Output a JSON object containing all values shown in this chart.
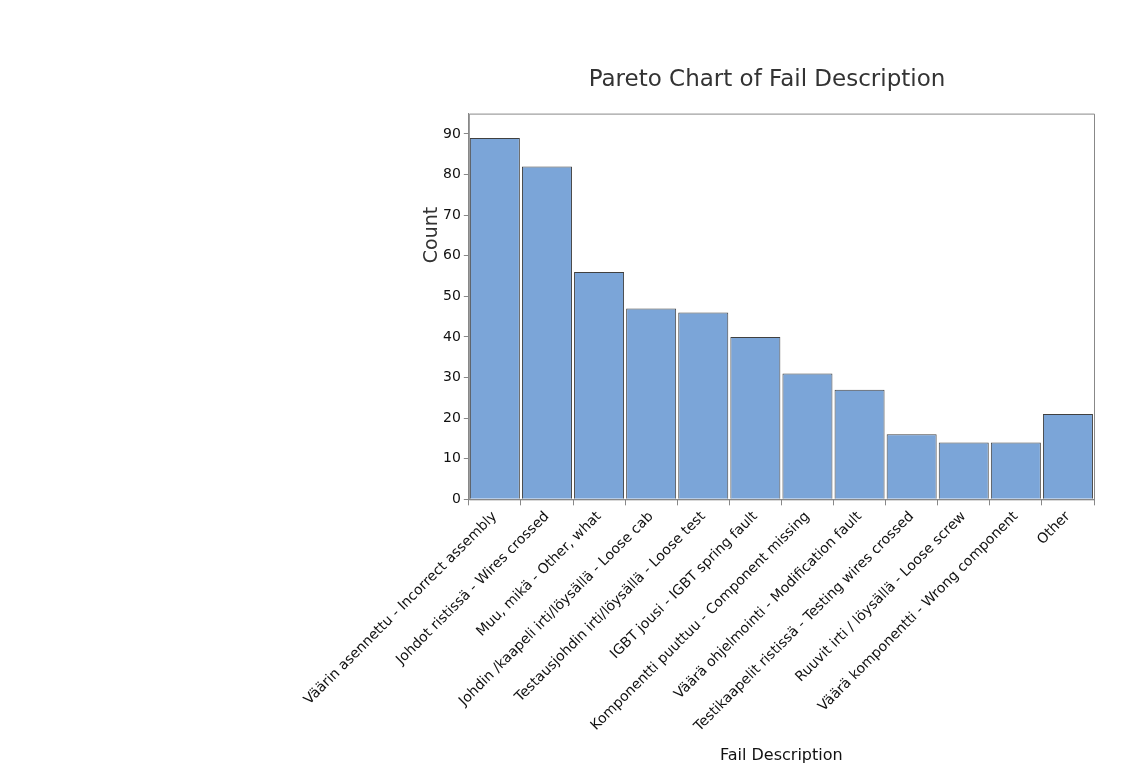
{
  "chart_data": {
    "type": "bar",
    "title": "Pareto Chart of Fail Description",
    "xlabel": "Fail Description",
    "ylabel": "Count",
    "categories": [
      "Väärin asennettu - Incorrect assembly",
      "Johdot ristissä - Wires crossed",
      "Muu, mikä - Other, what",
      "Johdin /kaapeli irti/löysällä - Loose cab",
      "Testausjohdin irti/löysällä - Loose test",
      "IGBT jousi - IGBT spring fault",
      "Komponentti puuttuu - Component missing",
      "Väärä ohjelmointi - Modification fault",
      "Testikaapelit ristissä - Testing wires crossed",
      "Ruuvit irti / löysällä - Loose screw",
      "Väärä komponentti - Wrong component",
      "Other"
    ],
    "values": [
      89,
      82,
      56,
      47,
      46,
      40,
      31,
      27,
      16,
      14,
      14,
      21
    ],
    "color": "#7ba5d8",
    "ylim": [
      0,
      95
    ],
    "yticks": [
      0,
      10,
      20,
      30,
      40,
      50,
      60,
      70,
      80,
      90
    ]
  }
}
